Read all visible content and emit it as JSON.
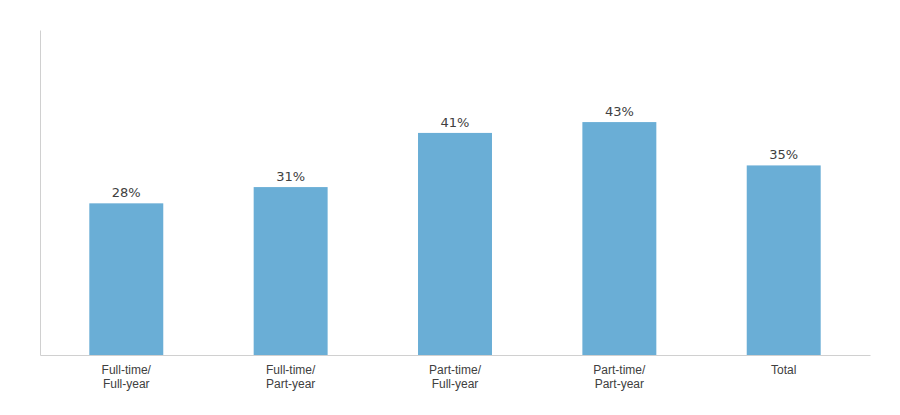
{
  "chart_data": {
    "type": "bar",
    "categories": [
      "Full-time/\nFull-year",
      "Full-time/\nPart-year",
      "Part-time/\nFull-year",
      "Part-time/\nPart-year",
      "Total"
    ],
    "values": [
      28,
      31,
      41,
      43,
      35
    ],
    "value_labels": [
      "28%",
      "31%",
      "41%",
      "43%",
      "35%"
    ],
    "data_labels": true,
    "color": "#6aaed6",
    "ylim": [
      0,
      60
    ],
    "tick_labels": "x",
    "grid": false
  }
}
